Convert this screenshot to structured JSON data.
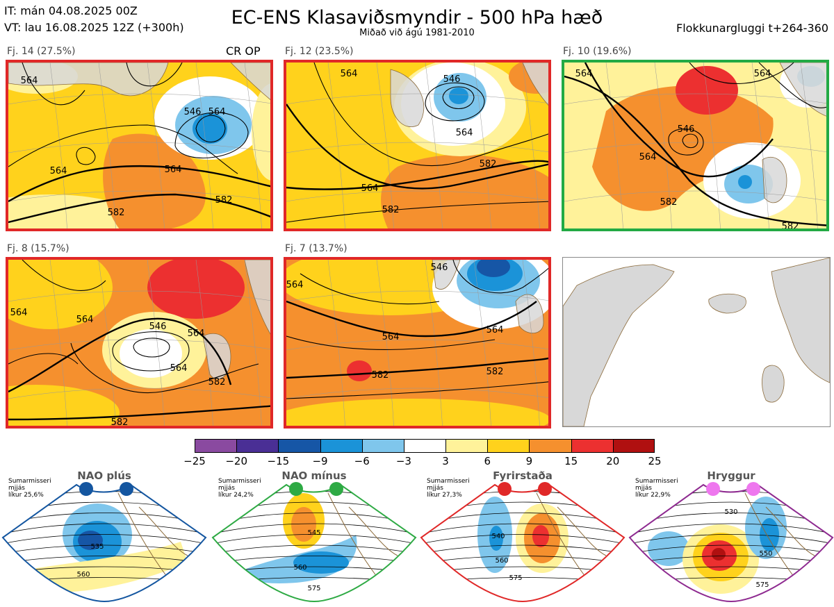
{
  "header": {
    "it_line": "IT: mán 04.08.2025 00Z",
    "vt_line": "VT: lau 16.08.2025 12Z  (+300h)",
    "title": "EC-ENS Klasaviðsmyndir - 500 hPa hæð",
    "subtitle": "Miðað við ágú 1981-2010",
    "window_label": "Flokkunargluggi t+264-360"
  },
  "op_marker": "CR OP",
  "colors": {
    "land": "#d8d8d8",
    "coast": "#8b6a3a",
    "panel_border_red": "#e02828",
    "panel_border_green": "#22aa44",
    "contour": "#000000"
  },
  "chart_data": {
    "type": "heatmap",
    "description_units": "500 hPa height (dam) contours with anomaly shading",
    "clusters": [
      {
        "label": "Fj. 14 (27.5%)",
        "probability_percent": 27.5,
        "border": "red",
        "contour_labels": [
          "564",
          "564",
          "546",
          "564",
          "582",
          "564",
          "582"
        ]
      },
      {
        "label": "Fj. 12 (23.5%)",
        "probability_percent": 23.5,
        "border": "red",
        "contour_labels": [
          "564",
          "546",
          "564",
          "582",
          "564",
          "582"
        ]
      },
      {
        "label": "Fj. 10 (19.6%)",
        "probability_percent": 19.6,
        "border": "green",
        "contour_labels": [
          "564",
          "564",
          "546",
          "564",
          "582",
          "582"
        ]
      },
      {
        "label": "Fj. 8 (15.7%)",
        "probability_percent": 15.7,
        "border": "red",
        "contour_labels": [
          "564",
          "564",
          "546",
          "564",
          "564",
          "582",
          "582"
        ]
      },
      {
        "label": "Fj. 7 (13.7%)",
        "probability_percent": 13.7,
        "border": "red",
        "contour_labels": [
          "564",
          "546",
          "564",
          "564",
          "582",
          "582"
        ]
      }
    ],
    "colorbar": {
      "ticks": [
        "−25",
        "−20",
        "−15",
        "−9",
        "−6",
        "−3",
        "3",
        "6",
        "9",
        "15",
        "20",
        "25"
      ],
      "colors": [
        "#8a4aa0",
        "#4a2f95",
        "#1656a6",
        "#1b93d8",
        "#7fc6ec",
        "#ffffff",
        "#fff29a",
        "#ffd21c",
        "#f5902e",
        "#ec3030",
        "#b01010"
      ]
    },
    "regimes": [
      {
        "name": "NAO plús",
        "stat": [
          "Sumarmisseri",
          "mjjás",
          "líkur 25,6%"
        ],
        "probability_percent": 25.6,
        "outline": "#1456a0",
        "dot": "#1456a0",
        "contour_labels": [
          "535",
          "560"
        ]
      },
      {
        "name": "NAO mínus",
        "stat": [
          "Sumarmisseri",
          "mjjás",
          "líkur 24,2%"
        ],
        "probability_percent": 24.2,
        "outline": "#2eaa44",
        "dot": "#2eaa44",
        "contour_labels": [
          "545",
          "560",
          "575"
        ]
      },
      {
        "name": "Fyrirstaða",
        "stat": [
          "Sumarmisseri",
          "mjjás",
          "líkur 27,3%"
        ],
        "probability_percent": 27.3,
        "outline": "#e02828",
        "dot": "#e02828",
        "contour_labels": [
          "540",
          "560",
          "575"
        ]
      },
      {
        "name": "Hryggur",
        "stat": [
          "Sumarmisseri",
          "mjjás",
          "líkur 22,9%"
        ],
        "probability_percent": 22.9,
        "outline": "#8e2a90",
        "dot": "#ee77ee",
        "contour_labels": [
          "530",
          "550",
          "575"
        ]
      }
    ]
  }
}
